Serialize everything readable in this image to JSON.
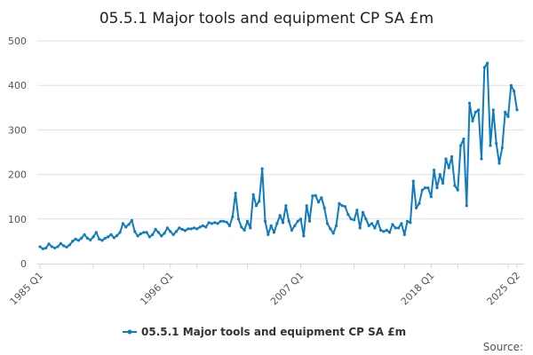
{
  "chart_data": {
    "type": "line",
    "title": "05.5.1 Major tools and equipment CP SA £m",
    "xlabel": "",
    "ylabel": "",
    "x_start": "1985 Q1",
    "x_end": "2025 Q2",
    "x_tick_labels": [
      "1985 Q1",
      "1996 Q1",
      "2007 Q1",
      "2018 Q1",
      "2025 Q2"
    ],
    "y_tick_labels": [
      "0",
      "100",
      "200",
      "300",
      "400",
      "500"
    ],
    "ylim": [
      0,
      500
    ],
    "grid": true,
    "legend_position": "bottom",
    "color": "#0f7cbf",
    "series": [
      {
        "name": "05.5.1 Major tools and equipment CP SA £m",
        "values": [
          38,
          33,
          35,
          44,
          38,
          35,
          38,
          45,
          40,
          37,
          42,
          50,
          55,
          52,
          57,
          65,
          57,
          53,
          60,
          70,
          55,
          52,
          57,
          60,
          65,
          58,
          63,
          70,
          90,
          82,
          88,
          97,
          72,
          62,
          67,
          70,
          70,
          60,
          65,
          77,
          70,
          62,
          68,
          80,
          72,
          65,
          72,
          80,
          77,
          74,
          78,
          78,
          80,
          78,
          82,
          85,
          82,
          92,
          90,
          92,
          90,
          95,
          95,
          93,
          85,
          105,
          158,
          100,
          82,
          75,
          95,
          80,
          155,
          130,
          140,
          213,
          95,
          65,
          85,
          70,
          90,
          108,
          92,
          130,
          95,
          75,
          85,
          95,
          100,
          62,
          130,
          95,
          152,
          153,
          138,
          148,
          125,
          90,
          78,
          68,
          85,
          135,
          130,
          128,
          110,
          100,
          98,
          120,
          80,
          115,
          100,
          85,
          90,
          80,
          95,
          75,
          72,
          75,
          70,
          88,
          80,
          80,
          90,
          65,
          95,
          92,
          185,
          125,
          135,
          165,
          170,
          170,
          150,
          210,
          170,
          200,
          180,
          235,
          215,
          240,
          175,
          165,
          265,
          280,
          130,
          360,
          320,
          340,
          345,
          235,
          440,
          450,
          265,
          345,
          270,
          225,
          260,
          340,
          330,
          400,
          387,
          345
        ]
      }
    ]
  },
  "source_label": "Source:"
}
